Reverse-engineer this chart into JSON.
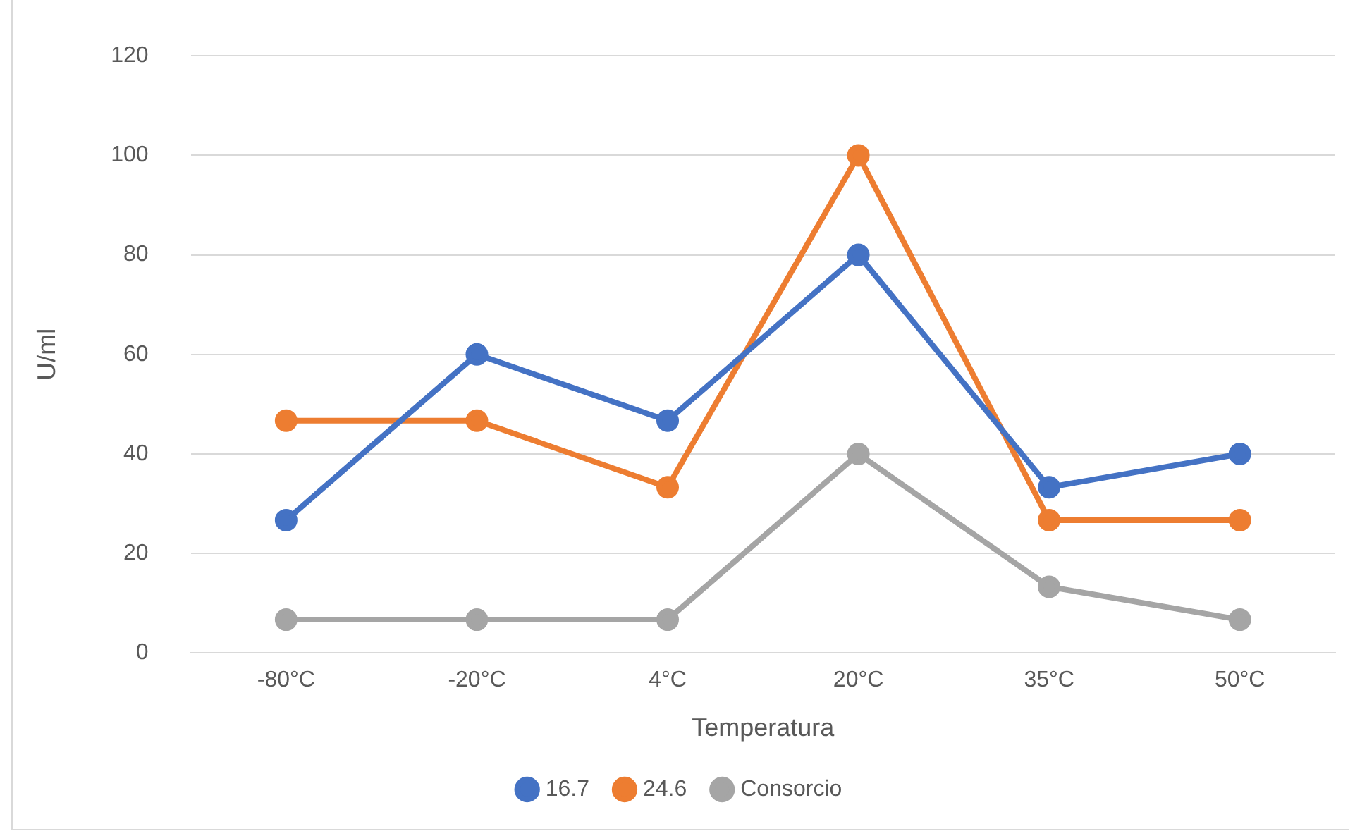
{
  "chart_data": {
    "type": "line",
    "xlabel": "Temperatura",
    "ylabel": "U/ml",
    "categories": [
      "-80°C",
      "-20°C",
      "4°C",
      "20°C",
      "35°C",
      "50°C"
    ],
    "series": [
      {
        "name": "16.7",
        "color": "#4472c4",
        "values": [
          26.7,
          60,
          46.7,
          80,
          33.3,
          40
        ]
      },
      {
        "name": "24.6",
        "color": "#ed7d31",
        "values": [
          46.7,
          46.7,
          33.3,
          100,
          26.7,
          26.7
        ]
      },
      {
        "name": "Consorcio",
        "color": "#a5a5a5",
        "values": [
          6.7,
          6.7,
          6.7,
          40,
          13.3,
          6.7
        ]
      }
    ],
    "ylim": [
      0,
      120
    ],
    "yticks": [
      0,
      20,
      40,
      60,
      80,
      100,
      120
    ],
    "grid": "y",
    "legend": "bottom",
    "marker": "circle",
    "line_style": "solid"
  }
}
